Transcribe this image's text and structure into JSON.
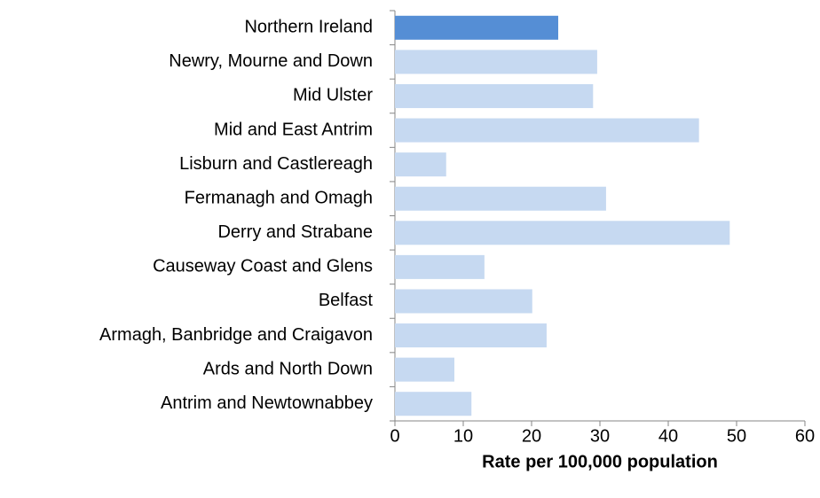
{
  "chart_data": {
    "type": "barh",
    "categories": [
      "Northern Ireland",
      "Newry, Mourne and Down",
      "Mid Ulster",
      "Mid and East Antrim",
      "Lisburn and Castlereagh",
      "Fermanagh and Omagh",
      "Derry and Strabane",
      "Causeway Coast and Glens",
      "Belfast",
      "Armagh, Banbridge and Craigavon",
      "Ards and North Down",
      "Antrim and Newtownabbey"
    ],
    "values": [
      23.9,
      29.6,
      29.0,
      44.5,
      7.5,
      30.9,
      49.0,
      13.1,
      20.1,
      22.2,
      8.7,
      11.2
    ],
    "colors": [
      "#558ed5",
      "#c6d9f1",
      "#c6d9f1",
      "#c6d9f1",
      "#c6d9f1",
      "#c6d9f1",
      "#c6d9f1",
      "#c6d9f1",
      "#c6d9f1",
      "#c6d9f1",
      "#c6d9f1",
      "#c6d9f1"
    ],
    "xlabel": "Rate per 100,000 population",
    "xlim": [
      0,
      60
    ],
    "xticks": [
      0,
      10,
      20,
      30,
      40,
      50,
      60
    ]
  }
}
